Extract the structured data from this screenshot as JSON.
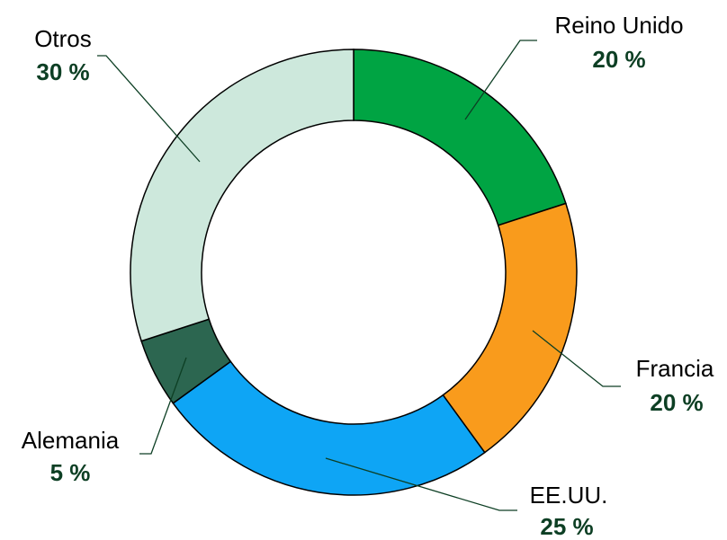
{
  "chart_data": {
    "type": "donut",
    "categories": [
      "Reino Unido",
      "Francia",
      "EE.UU.",
      "Alemania",
      "Otros"
    ],
    "values": [
      20,
      20,
      25,
      5,
      30
    ],
    "value_labels": [
      "20 %",
      "20 %",
      "25 %",
      "5 %",
      "30 %"
    ],
    "colors": [
      "#00a443",
      "#f99b1c",
      "#0ea5f5",
      "#2c6650",
      "#cde8dc"
    ]
  }
}
